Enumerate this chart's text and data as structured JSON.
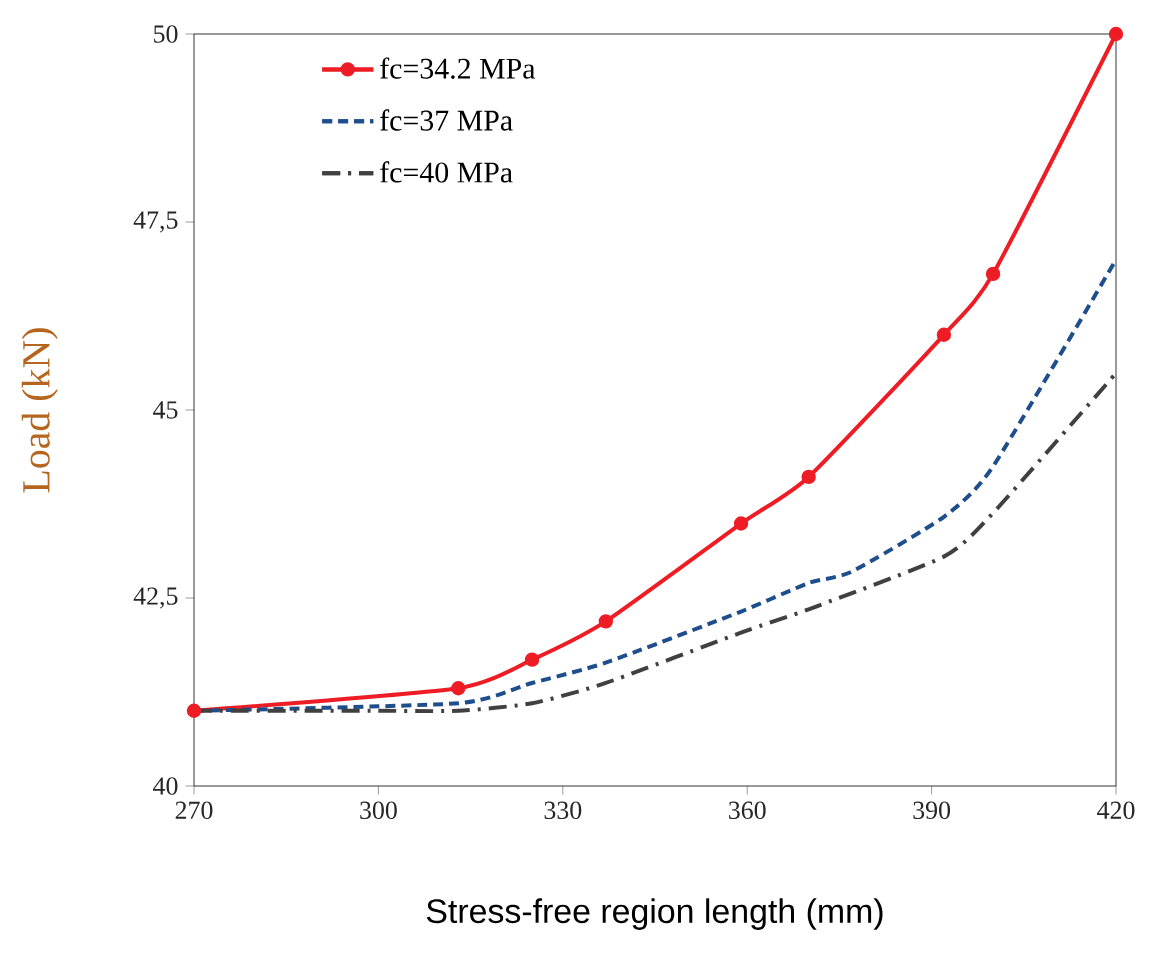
{
  "chart_data": {
    "type": "line",
    "xlabel": "Stress-free region length (mm)",
    "ylabel": "Load (kN)",
    "xlim": [
      270,
      420
    ],
    "xticks": [
      270,
      300,
      330,
      360,
      390,
      420
    ],
    "ylim": [
      40,
      50
    ],
    "yticks": [
      40,
      {
        "value": 42.5,
        "label": "42,5"
      },
      45,
      {
        "value": 47.5,
        "label": "47,5"
      },
      50
    ],
    "grid": false,
    "legend": "top left",
    "series": [
      {
        "name": "fc=34.2 MPa",
        "color": "#ee1c25",
        "marker": "circle",
        "line_style": "solid",
        "x": [
          270,
          313,
          325,
          337,
          359,
          370,
          392,
          400,
          420
        ],
        "values": [
          41.0,
          41.3,
          41.68,
          42.19,
          43.49,
          44.11,
          46.0,
          46.81,
          50.0
        ]
      },
      {
        "name": "fc=37 MPa",
        "color": "#1f4e8c",
        "marker": "none",
        "line_style": "dashed",
        "x": [
          270,
          313,
          325,
          337,
          359,
          370,
          377,
          392,
          400,
          420
        ],
        "values": [
          41.0,
          41.1,
          41.37,
          41.64,
          42.32,
          42.7,
          42.85,
          43.58,
          44.25,
          47.0
        ]
      },
      {
        "name": "fc=40 MPa",
        "color": "#404040",
        "marker": "none",
        "line_style": "dashdot",
        "x": [
          270,
          300,
          313,
          325,
          337,
          359,
          370,
          392,
          400,
          420
        ],
        "values": [
          41.0,
          41.0,
          41.0,
          41.1,
          41.37,
          42.04,
          42.35,
          43.05,
          43.63,
          45.49
        ]
      }
    ]
  }
}
